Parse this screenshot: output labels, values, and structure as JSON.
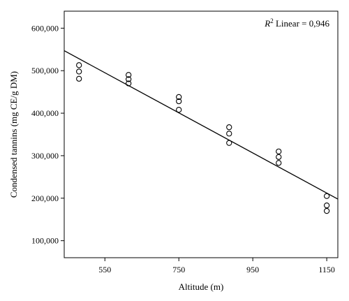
{
  "chart_data": {
    "type": "scatter",
    "title": "",
    "xlabel": "Altitude (m)",
    "ylabel": "Condensed tannins (mg CE/g DM)",
    "xlim": [
      440,
      1180
    ],
    "ylim": [
      60000,
      640000
    ],
    "x_ticks": [
      550,
      750,
      950,
      1150
    ],
    "x_tick_labels": [
      "550",
      "750",
      "950",
      "1150"
    ],
    "y_ticks": [
      100000,
      200000,
      300000,
      400000,
      500000,
      600000
    ],
    "y_tick_labels": [
      "100,000",
      "200,000",
      "300,000",
      "400,000",
      "500,000",
      "600,000"
    ],
    "grid": false,
    "marker": "open-circle",
    "points": [
      {
        "x": 480,
        "y": 513000
      },
      {
        "x": 480,
        "y": 498000
      },
      {
        "x": 480,
        "y": 481000
      },
      {
        "x": 614,
        "y": 490000
      },
      {
        "x": 614,
        "y": 480000
      },
      {
        "x": 614,
        "y": 470000
      },
      {
        "x": 750,
        "y": 438000
      },
      {
        "x": 750,
        "y": 428000
      },
      {
        "x": 750,
        "y": 408000
      },
      {
        "x": 886,
        "y": 367000
      },
      {
        "x": 886,
        "y": 352000
      },
      {
        "x": 886,
        "y": 330000
      },
      {
        "x": 1020,
        "y": 310000
      },
      {
        "x": 1020,
        "y": 297000
      },
      {
        "x": 1020,
        "y": 283000
      },
      {
        "x": 1150,
        "y": 205000
      },
      {
        "x": 1150,
        "y": 183000
      },
      {
        "x": 1150,
        "y": 170000
      }
    ],
    "fit_line": {
      "x": [
        440,
        1180
      ],
      "y": [
        547000,
        198000
      ]
    },
    "annotation": {
      "r_symbol": "R",
      "superscript": "2",
      "text": " Linear = 0,946",
      "placement": "top-right"
    }
  }
}
